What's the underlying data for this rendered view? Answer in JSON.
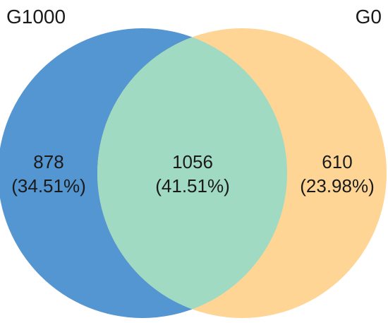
{
  "sets": [
    {
      "label": "G1000",
      "color": "#5496d1"
    },
    {
      "label": "G0",
      "color": "#fed594"
    }
  ],
  "intersection_color": "#a1dac3",
  "regions": [
    {
      "id": "g1000-only",
      "count": "878",
      "percent": "(34.51%)"
    },
    {
      "id": "both",
      "count": "1056",
      "percent": "(41.51%)"
    },
    {
      "id": "g0-only",
      "count": "610",
      "percent": "(23.98%)"
    }
  ]
}
